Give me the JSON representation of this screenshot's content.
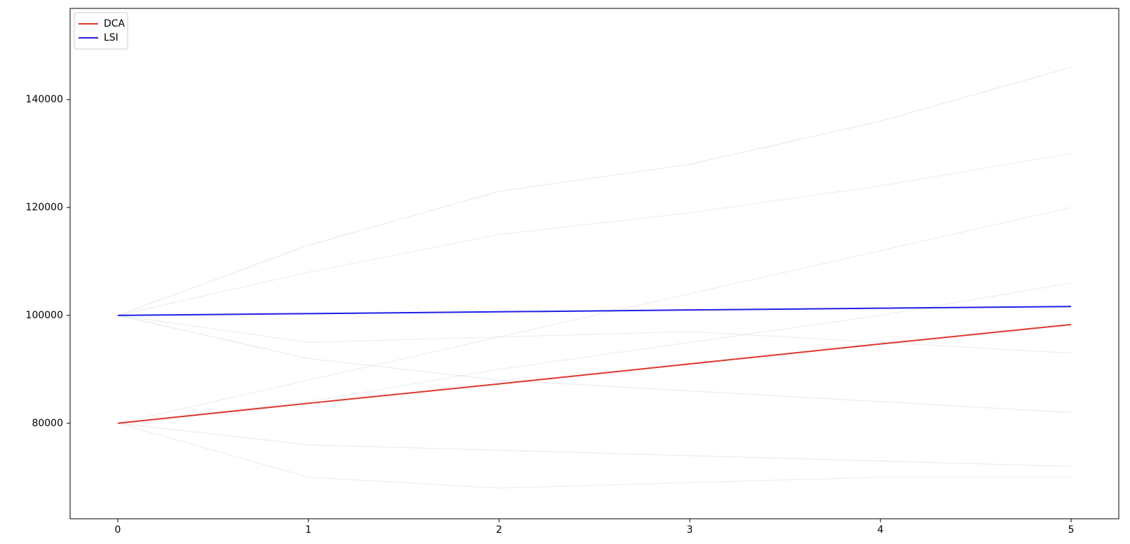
{
  "chart_data": {
    "type": "line",
    "x": [
      0,
      1,
      2,
      3,
      4,
      5
    ],
    "series": [
      {
        "color": "#9aa0a6",
        "faint": true,
        "values": [
          100000,
          113000,
          123000,
          128000,
          136000,
          146000
        ]
      },
      {
        "color": "#c9a98a",
        "faint": true,
        "values": [
          100000,
          108000,
          115000,
          119000,
          124000,
          130000
        ]
      },
      {
        "color": "#8fb2c9",
        "faint": true,
        "values": [
          100000,
          95000,
          96000,
          97000,
          95000,
          93000
        ]
      },
      {
        "color": "#9aa0a6",
        "faint": true,
        "values": [
          100000,
          92000,
          88000,
          86000,
          84000,
          82000
        ]
      },
      {
        "color": "#c9a98a",
        "faint": true,
        "values": [
          80000,
          88000,
          96000,
          104000,
          112000,
          120000
        ]
      },
      {
        "color": "#8fb2c9",
        "faint": true,
        "values": [
          80000,
          84000,
          90000,
          95000,
          100000,
          106000
        ]
      },
      {
        "color": "#9aa0a6",
        "faint": true,
        "values": [
          80000,
          76000,
          75000,
          74000,
          73000,
          72000
        ]
      },
      {
        "color": "#c9a98a",
        "faint": true,
        "values": [
          80000,
          70000,
          68000,
          69000,
          70000,
          70000
        ]
      },
      {
        "name": "DCA",
        "color": "#e0362c",
        "values": [
          80000,
          83700,
          87300,
          91000,
          94700,
          98300
        ]
      },
      {
        "name": "LSI",
        "color": "#1f1fe6",
        "values": [
          100000,
          100330,
          100660,
          101000,
          101330,
          101650
        ]
      }
    ],
    "xlim": [
      -0.25,
      5.25
    ],
    "xticks": [
      0,
      1,
      2,
      3,
      4,
      5
    ],
    "ylim": [
      62300,
      156900
    ],
    "yticks": [
      80000,
      100000,
      120000,
      140000
    ],
    "grid": false,
    "legend": "upper-left"
  }
}
